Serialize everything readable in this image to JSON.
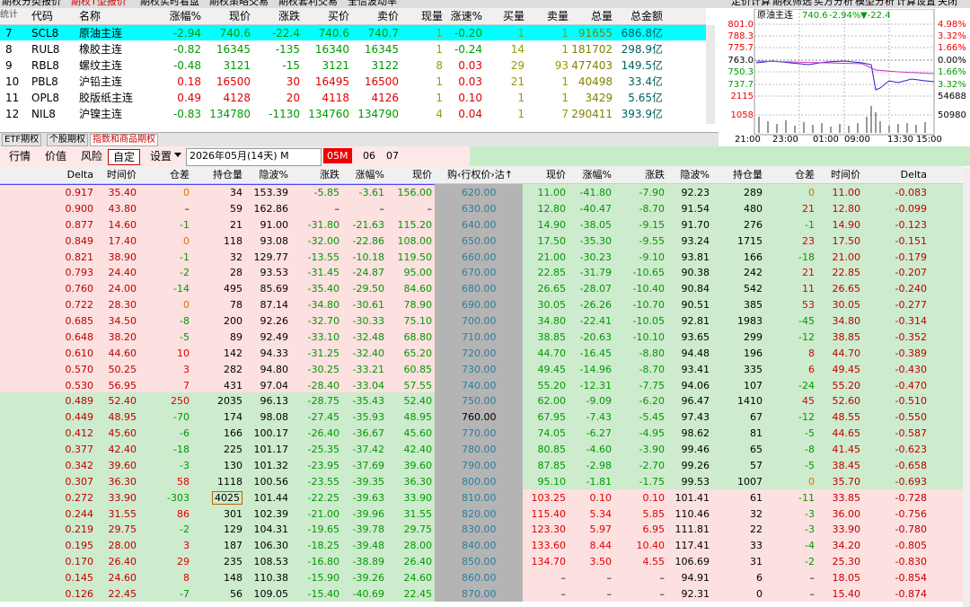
{
  "top_tabs": [
    "期权分类报价",
    "期权T型报价",
    "期权实时看盘",
    "期权策略交易",
    "期权套利交易",
    "全信波动率"
  ],
  "right_tabs": [
    "定价计算",
    "期权筛选",
    "买方分析",
    "模型分析",
    "计算设置",
    "关闭"
  ],
  "quote_table": {
    "side_label": "统计",
    "headers": [
      "代码",
      "名称",
      "涨幅%",
      "现价",
      "涨跌",
      "买价",
      "卖价",
      "现量",
      "涨速%",
      "买量",
      "卖量",
      "总量",
      "总金额"
    ],
    "rows": [
      [
        "7",
        "SCL8",
        "原油主连",
        "-2.94",
        "740.6",
        "-22.4",
        "740.6",
        "740.7",
        "1",
        "-0.20",
        "1",
        "1",
        "91655",
        "686.8亿"
      ],
      [
        "8",
        "RUL8",
        "橡胶主连",
        "-0.82",
        "16345",
        "-135",
        "16340",
        "16345",
        "1",
        "-0.24",
        "14",
        "1",
        "181702",
        "298.9亿"
      ],
      [
        "9",
        "RBL8",
        "螺纹主连",
        "-0.48",
        "3121",
        "-15",
        "3121",
        "3122",
        "8",
        "0.03",
        "29",
        "93",
        "477403",
        "149.5亿"
      ],
      [
        "10",
        "PBL8",
        "沪铅主连",
        "0.18",
        "16500",
        "30",
        "16495",
        "16500",
        "1",
        "0.03",
        "21",
        "1",
        "40498",
        "33.4亿"
      ],
      [
        "11",
        "OPL8",
        "胶版纸主连",
        "0.49",
        "4128",
        "20",
        "4118",
        "4126",
        "1",
        "0.10",
        "1",
        "1",
        "3429",
        "5.65亿"
      ],
      [
        "12",
        "NIL8",
        "沪镍主连",
        "-0.83",
        "134780",
        "-1130",
        "134760",
        "134790",
        "4",
        "0.04",
        "1",
        "7",
        "290411",
        "393.9亿"
      ]
    ]
  },
  "mini_chart": {
    "name": "原油主连",
    "price": "740.6",
    "pct": "-2.94%",
    "change": "▼-22.4",
    "left_labels": [
      "801.0",
      "788.3",
      "775.7",
      "763.0",
      "750.3",
      "737.7",
      "2115",
      "1058"
    ],
    "right_labels": [
      "4.98%",
      "3.32%",
      "1.66%",
      "0.00%",
      "1.66%",
      "3.32%",
      "54688",
      "50980"
    ],
    "time_labels": [
      "21:00",
      "23:00",
      "01:00",
      "09:00",
      "13:30",
      "15:00"
    ]
  },
  "panel_tabs": [
    "ETF期权",
    "个股期权",
    "指数和商品期权"
  ],
  "toolbar": {
    "buttons": [
      "行情",
      "价值",
      "风险",
      "自定"
    ],
    "settings": "设置",
    "month_select": "2026年05月(14天) M",
    "months": [
      "05M",
      "06",
      "07"
    ]
  },
  "option_table": {
    "headers": [
      "Delta",
      "时间价",
      "仓差",
      "持仓量",
      "隐波%",
      "涨跌",
      "涨幅%",
      "现价",
      "购‹行权价›沽↑",
      "现价",
      "涨幅%",
      "涨跌",
      "隐波%",
      "持仓量",
      "仓差",
      "时间价",
      "Delta"
    ],
    "rows": [
      [
        "0.917",
        "35.40",
        "0",
        "34",
        "153.39",
        "-5.85",
        "-3.61",
        "156.00",
        "620.00",
        "11.00",
        "-41.80",
        "-7.90",
        "92.23",
        "289",
        "0",
        "11.00",
        "-0.083"
      ],
      [
        "0.900",
        "43.80",
        "–",
        "59",
        "162.86",
        "–",
        "–",
        "–",
        "630.00",
        "12.80",
        "-40.47",
        "-8.70",
        "91.54",
        "480",
        "21",
        "12.80",
        "-0.099"
      ],
      [
        "0.877",
        "14.60",
        "-1",
        "21",
        "91.00",
        "-31.80",
        "-21.63",
        "115.20",
        "640.00",
        "14.90",
        "-38.05",
        "-9.15",
        "91.70",
        "276",
        "-1",
        "14.90",
        "-0.123"
      ],
      [
        "0.849",
        "17.40",
        "0",
        "118",
        "93.08",
        "-32.00",
        "-22.86",
        "108.00",
        "650.00",
        "17.50",
        "-35.30",
        "-9.55",
        "93.24",
        "1715",
        "23",
        "17.50",
        "-0.151"
      ],
      [
        "0.821",
        "38.90",
        "-1",
        "32",
        "129.77",
        "-13.55",
        "-10.18",
        "119.50",
        "660.00",
        "21.00",
        "-30.23",
        "-9.10",
        "93.81",
        "166",
        "-18",
        "21.00",
        "-0.179"
      ],
      [
        "0.793",
        "24.40",
        "-2",
        "28",
        "93.53",
        "-31.45",
        "-24.87",
        "95.00",
        "670.00",
        "22.85",
        "-31.79",
        "-10.65",
        "90.38",
        "242",
        "21",
        "22.85",
        "-0.207"
      ],
      [
        "0.760",
        "24.00",
        "-14",
        "495",
        "85.69",
        "-35.40",
        "-29.50",
        "84.60",
        "680.00",
        "26.65",
        "-28.07",
        "-10.40",
        "90.84",
        "542",
        "11",
        "26.65",
        "-0.240"
      ],
      [
        "0.722",
        "28.30",
        "0",
        "78",
        "87.14",
        "-34.80",
        "-30.61",
        "78.90",
        "690.00",
        "30.05",
        "-26.26",
        "-10.70",
        "90.51",
        "385",
        "53",
        "30.05",
        "-0.277"
      ],
      [
        "0.685",
        "34.50",
        "-8",
        "200",
        "92.26",
        "-32.70",
        "-30.33",
        "75.10",
        "700.00",
        "34.80",
        "-22.41",
        "-10.05",
        "92.81",
        "1983",
        "-45",
        "34.80",
        "-0.314"
      ],
      [
        "0.648",
        "38.20",
        "-5",
        "89",
        "92.49",
        "-33.10",
        "-32.48",
        "68.80",
        "710.00",
        "38.85",
        "-20.63",
        "-10.10",
        "93.65",
        "299",
        "-12",
        "38.85",
        "-0.352"
      ],
      [
        "0.610",
        "44.60",
        "10",
        "142",
        "94.33",
        "-31.25",
        "-32.40",
        "65.20",
        "720.00",
        "44.70",
        "-16.45",
        "-8.80",
        "94.48",
        "196",
        "8",
        "44.70",
        "-0.389"
      ],
      [
        "0.570",
        "50.25",
        "3",
        "282",
        "94.80",
        "-30.25",
        "-33.21",
        "60.85",
        "730.00",
        "49.45",
        "-14.96",
        "-8.70",
        "93.41",
        "335",
        "6",
        "49.45",
        "-0.430"
      ],
      [
        "0.530",
        "56.95",
        "7",
        "431",
        "97.04",
        "-28.40",
        "-33.04",
        "57.55",
        "740.00",
        "55.20",
        "-12.31",
        "-7.75",
        "94.06",
        "107",
        "-24",
        "55.20",
        "-0.470"
      ],
      [
        "0.489",
        "52.40",
        "250",
        "2035",
        "96.13",
        "-28.75",
        "-35.43",
        "52.40",
        "750.00",
        "62.00",
        "-9.09",
        "-6.20",
        "96.47",
        "1410",
        "45",
        "52.60",
        "-0.510"
      ],
      [
        "0.449",
        "48.95",
        "-70",
        "174",
        "98.08",
        "-27.45",
        "-35.93",
        "48.95",
        "760.00",
        "67.95",
        "-7.43",
        "-5.45",
        "97.43",
        "67",
        "-12",
        "48.55",
        "-0.550"
      ],
      [
        "0.412",
        "45.60",
        "-6",
        "166",
        "100.17",
        "-26.40",
        "-36.67",
        "45.60",
        "770.00",
        "74.05",
        "-6.27",
        "-4.95",
        "98.62",
        "81",
        "-5",
        "44.65",
        "-0.587"
      ],
      [
        "0.377",
        "42.40",
        "-18",
        "225",
        "101.17",
        "-25.35",
        "-37.42",
        "42.40",
        "780.00",
        "80.85",
        "-4.60",
        "-3.90",
        "99.46",
        "65",
        "-8",
        "41.45",
        "-0.623"
      ],
      [
        "0.342",
        "39.60",
        "-3",
        "130",
        "101.32",
        "-23.95",
        "-37.69",
        "39.60",
        "790.00",
        "87.85",
        "-2.98",
        "-2.70",
        "99.26",
        "57",
        "-5",
        "38.45",
        "-0.658"
      ],
      [
        "0.307",
        "36.30",
        "58",
        "1118",
        "100.56",
        "-23.55",
        "-39.35",
        "36.30",
        "800.00",
        "95.10",
        "-1.81",
        "-1.75",
        "99.53",
        "1007",
        "0",
        "35.70",
        "-0.693"
      ],
      [
        "0.272",
        "33.90",
        "-303",
        "4025",
        "101.44",
        "-22.25",
        "-39.63",
        "33.90",
        "810.00",
        "103.25",
        "0.10",
        "0.10",
        "101.41",
        "61",
        "-11",
        "33.85",
        "-0.728"
      ],
      [
        "0.244",
        "31.55",
        "86",
        "301",
        "102.39",
        "-21.00",
        "-39.96",
        "31.55",
        "820.00",
        "115.40",
        "5.34",
        "5.85",
        "110.46",
        "32",
        "-3",
        "36.00",
        "-0.756"
      ],
      [
        "0.219",
        "29.75",
        "-2",
        "129",
        "104.31",
        "-19.65",
        "-39.78",
        "29.75",
        "830.00",
        "123.30",
        "5.97",
        "6.95",
        "111.81",
        "22",
        "-3",
        "33.90",
        "-0.780"
      ],
      [
        "0.195",
        "28.00",
        "3",
        "187",
        "106.30",
        "-18.25",
        "-39.48",
        "28.00",
        "840.00",
        "133.60",
        "8.44",
        "10.40",
        "117.41",
        "33",
        "-4",
        "34.20",
        "-0.805"
      ],
      [
        "0.170",
        "26.40",
        "29",
        "235",
        "108.53",
        "-16.80",
        "-38.89",
        "26.40",
        "850.00",
        "134.70",
        "3.50",
        "4.55",
        "106.69",
        "31",
        "-2",
        "25.30",
        "-0.830"
      ],
      [
        "0.145",
        "24.60",
        "8",
        "148",
        "110.38",
        "-15.90",
        "-39.26",
        "24.60",
        "860.00",
        "–",
        "–",
        "–",
        "94.91",
        "6",
        "–",
        "18.05",
        "-0.854"
      ],
      [
        "0.126",
        "22.45",
        "-7",
        "56",
        "109.05",
        "-15.40",
        "-40.69",
        "22.45",
        "870.00",
        "–",
        "–",
        "–",
        "92.31",
        "0",
        "–",
        "15.40",
        "-0.874"
      ]
    ]
  }
}
